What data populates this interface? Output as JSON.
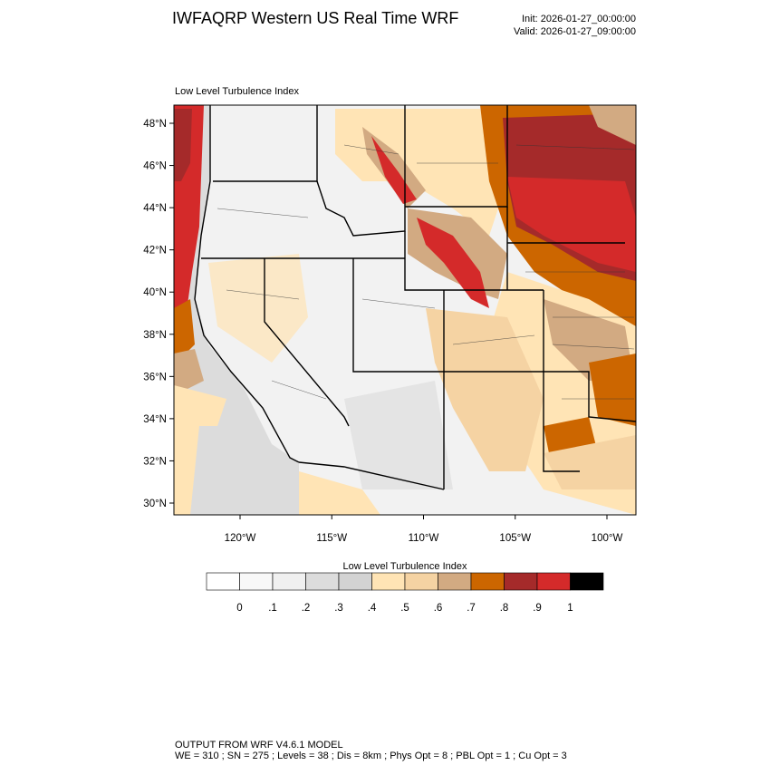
{
  "header": {
    "title": "IWFAQRP Western US Real Time WRF",
    "init": "Init: 2026-01-27_00:00:00",
    "valid": "Valid: 2026-01-27_09:00:00"
  },
  "map": {
    "subtitle": "Low Level Turbulence Index",
    "lat_labels": [
      "48°N",
      "46°N",
      "44°N",
      "42°N",
      "40°N",
      "38°N",
      "36°N",
      "34°N",
      "32°N",
      "30°N"
    ],
    "lon_labels": [
      "120°W",
      "115°W",
      "110°W",
      "105°W",
      "100°W"
    ]
  },
  "colorbar": {
    "title": "Low Level Turbulence Index",
    "colors": [
      "#ffffff",
      "#f8f8f8",
      "#f0f0f0",
      "#dcdcdc",
      "#d3d3d3",
      "#ffe4b5",
      "#f5d3a3",
      "#d2aa82",
      "#cc6600",
      "#a52a2a",
      "#d42a2a",
      "#000000"
    ],
    "levels": [
      0,
      {
        "value": 0.1,
        "label": ".1"
      },
      {
        "value": 0.2,
        "label": ".2"
      },
      {
        "value": 0.3,
        "label": ".3"
      },
      {
        "value": 0.4,
        "label": ".4"
      },
      {
        "value": 0.5,
        "label": ".5"
      },
      {
        "value": 0.6,
        "label": ".6"
      },
      {
        "value": 0.7,
        "label": ".7"
      },
      {
        "value": 0.8,
        "label": ".8"
      },
      {
        "value": 0.9,
        "label": ".9"
      },
      1
    ]
  },
  "footer": {
    "line1": "OUTPUT FROM WRF V4.6.1 MODEL",
    "line2": "WE = 310 ; SN = 275 ; Levels = 38 ; Dis = 8km ; Phys Opt = 8 ; PBL Opt = 1 ; Cu Opt = 3"
  }
}
